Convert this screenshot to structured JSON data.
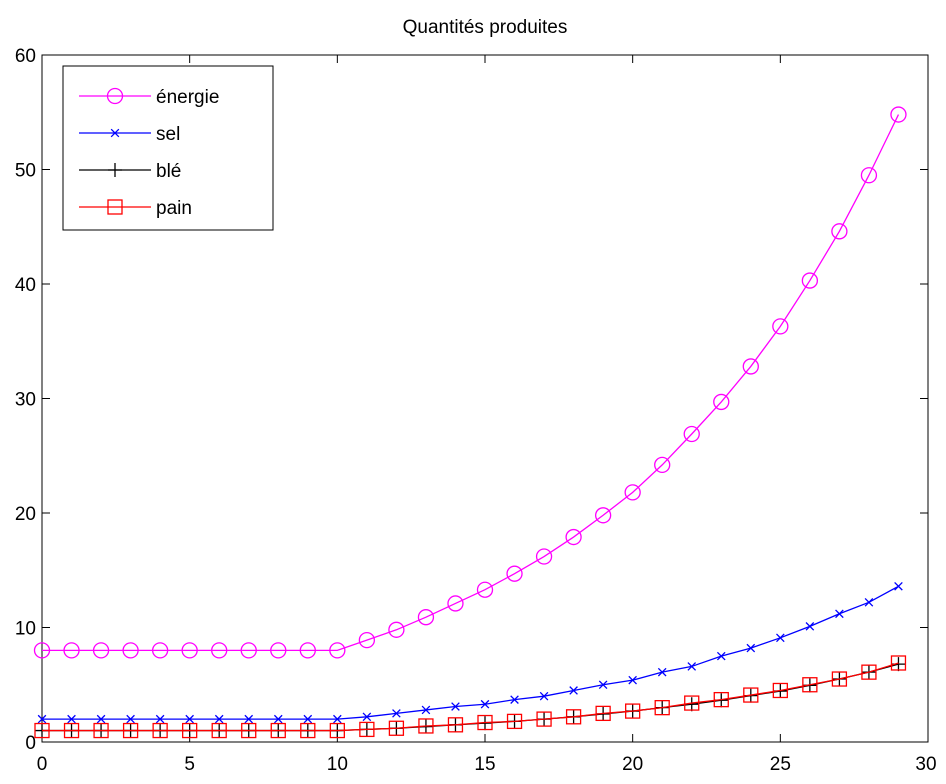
{
  "chart_data": {
    "type": "line",
    "title": "Quantités produites",
    "xlabel": "",
    "ylabel": "",
    "xlim": [
      0,
      30
    ],
    "ylim": [
      0,
      60
    ],
    "x_ticks": [
      0,
      5,
      10,
      15,
      20,
      25,
      30
    ],
    "y_ticks": [
      0,
      10,
      20,
      30,
      40,
      50,
      60
    ],
    "grid": false,
    "legend_position": "top-left",
    "x": [
      0,
      1,
      2,
      3,
      4,
      5,
      6,
      7,
      8,
      9,
      10,
      11,
      12,
      13,
      14,
      15,
      16,
      17,
      18,
      19,
      20,
      21,
      22,
      23,
      24,
      25,
      26,
      27,
      28,
      29
    ],
    "series": [
      {
        "name": "énergie",
        "color": "#ff00ff",
        "marker": "circle",
        "values": [
          8,
          8,
          8,
          8,
          8,
          8,
          8,
          8,
          8,
          8,
          8,
          8.9,
          9.8,
          10.9,
          12.1,
          13.3,
          14.7,
          16.2,
          17.9,
          19.8,
          21.8,
          24.2,
          26.9,
          29.7,
          32.8,
          36.3,
          40.3,
          44.6,
          49.5,
          54.8
        ]
      },
      {
        "name": "sel",
        "color": "#0000ff",
        "marker": "x",
        "values": [
          2,
          2,
          2,
          2,
          2,
          2,
          2,
          2,
          2,
          2,
          2,
          2.2,
          2.5,
          2.8,
          3.1,
          3.3,
          3.7,
          4.0,
          4.5,
          5.0,
          5.4,
          6.1,
          6.6,
          7.5,
          8.2,
          9.1,
          10.1,
          11.2,
          12.2,
          13.6
        ]
      },
      {
        "name": "blé",
        "color": "#000000",
        "marker": "plus",
        "values": [
          1,
          1,
          1,
          1,
          1,
          1,
          1,
          1,
          1,
          1,
          1,
          1.1,
          1.2,
          1.35,
          1.5,
          1.65,
          1.8,
          2.0,
          2.2,
          2.45,
          2.7,
          3.0,
          3.3,
          3.65,
          4.05,
          4.45,
          4.95,
          5.5,
          6.1,
          6.8
        ]
      },
      {
        "name": "pain",
        "color": "#ff0000",
        "marker": "square",
        "values": [
          1,
          1,
          1,
          1,
          1,
          1,
          1,
          1,
          1,
          1,
          1,
          1.1,
          1.2,
          1.4,
          1.5,
          1.7,
          1.8,
          2.0,
          2.2,
          2.5,
          2.7,
          3.0,
          3.4,
          3.7,
          4.1,
          4.5,
          5.0,
          5.5,
          6.1,
          6.9
        ]
      }
    ]
  }
}
